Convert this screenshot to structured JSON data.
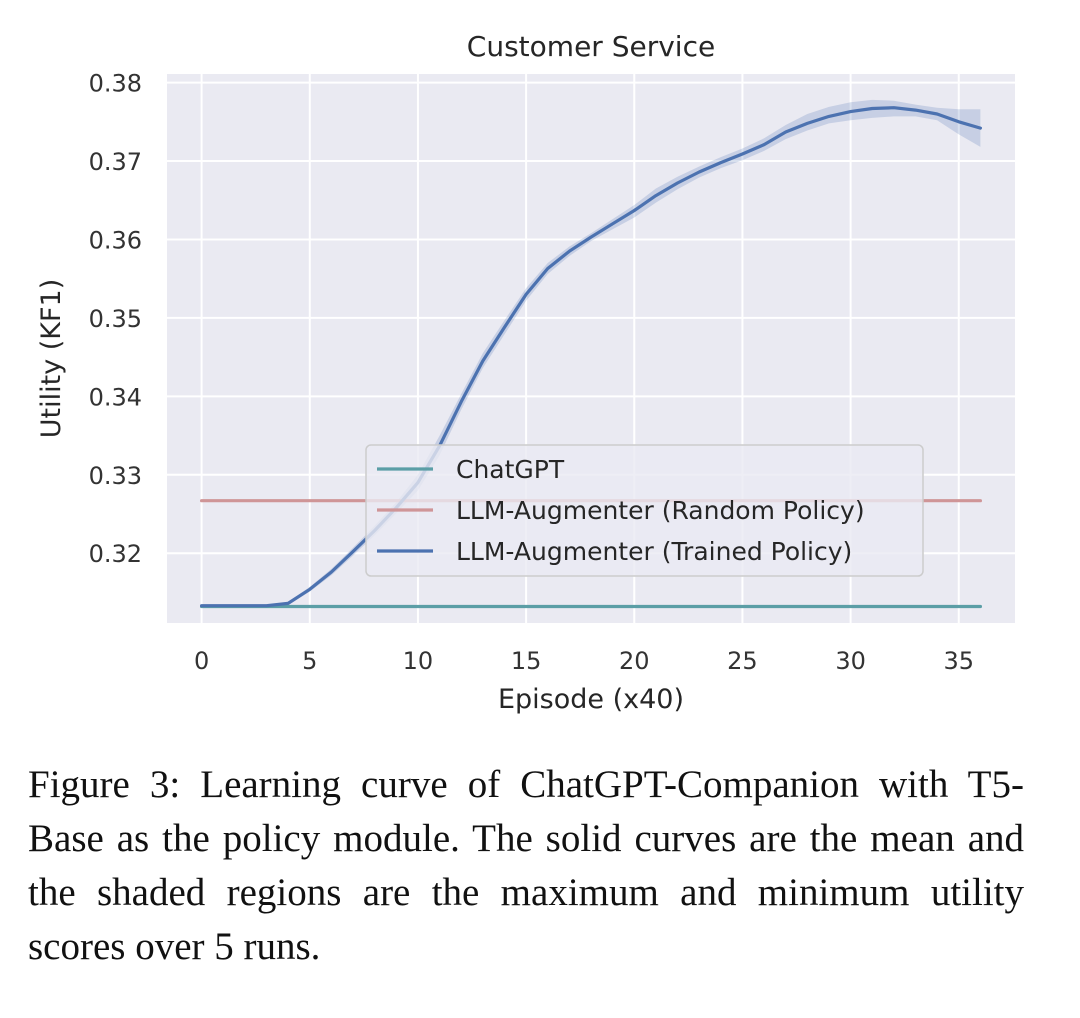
{
  "caption": "Figure 3: Learning curve of ChatGPT-Companion with T5-Base as the policy module.  The solid curves are the mean and the shaded regions are the maximum and minimum utility scores over 5 runs.",
  "chart_data": {
    "type": "line",
    "title": "Customer Service",
    "xlabel": "Episode (x40)",
    "ylabel": "Utility (KF1)",
    "xlim": [
      -1.6,
      37.6
    ],
    "ylim": [
      0.3111,
      0.3811
    ],
    "xticks": [
      "0",
      "5",
      "10",
      "15",
      "20",
      "25",
      "30",
      "35"
    ],
    "yticks": [
      "0.32",
      "0.33",
      "0.34",
      "0.35",
      "0.36",
      "0.37",
      "0.38"
    ],
    "grid": true,
    "legend_position": "center-right",
    "series": [
      {
        "name": "ChatGPT",
        "color": "#5b9ea6",
        "x": [
          0,
          36
        ],
        "y": [
          0.3132,
          0.3132
        ]
      },
      {
        "name": "LLM-Augmenter (Random Policy)",
        "color": "#cf9597",
        "x": [
          0,
          36
        ],
        "y": [
          0.3267,
          0.3267
        ]
      },
      {
        "name": "LLM-Augmenter (Trained Policy)",
        "color": "#4c72b0",
        "x": [
          0,
          1,
          2,
          3,
          4,
          5,
          6,
          7,
          8,
          9,
          10,
          11,
          12,
          13,
          14,
          15,
          16,
          17,
          18,
          19,
          20,
          21,
          22,
          23,
          24,
          25,
          26,
          27,
          28,
          29,
          30,
          31,
          32,
          33,
          34,
          35,
          36
        ],
        "y": [
          0.3133,
          0.3133,
          0.3133,
          0.3133,
          0.3136,
          0.3154,
          0.3176,
          0.3202,
          0.3229,
          0.3258,
          0.329,
          0.3337,
          0.3393,
          0.3445,
          0.3488,
          0.353,
          0.3563,
          0.3585,
          0.3603,
          0.362,
          0.3637,
          0.3656,
          0.3672,
          0.3686,
          0.3698,
          0.3709,
          0.3721,
          0.3737,
          0.3748,
          0.3757,
          0.3763,
          0.3767,
          0.3768,
          0.3765,
          0.376,
          0.375,
          0.3742
        ],
        "y_max": [
          0.3134,
          0.3134,
          0.3134,
          0.3134,
          0.3138,
          0.3157,
          0.318,
          0.3207,
          0.3235,
          0.3265,
          0.33,
          0.335,
          0.3403,
          0.3455,
          0.3497,
          0.3538,
          0.357,
          0.3591,
          0.3608,
          0.3626,
          0.3644,
          0.3665,
          0.368,
          0.3693,
          0.3705,
          0.3716,
          0.3729,
          0.3746,
          0.376,
          0.3769,
          0.3775,
          0.3778,
          0.3777,
          0.3772,
          0.3768,
          0.3766,
          0.3766
        ],
        "y_min": [
          0.3132,
          0.3132,
          0.3132,
          0.3132,
          0.3134,
          0.3151,
          0.3172,
          0.3197,
          0.3223,
          0.3251,
          0.328,
          0.3325,
          0.3383,
          0.3436,
          0.3479,
          0.3522,
          0.3556,
          0.3579,
          0.3598,
          0.3613,
          0.3628,
          0.3647,
          0.3664,
          0.3679,
          0.3691,
          0.3701,
          0.3713,
          0.3728,
          0.3739,
          0.3748,
          0.3752,
          0.3755,
          0.3757,
          0.3757,
          0.3752,
          0.3734,
          0.3718
        ]
      }
    ]
  }
}
